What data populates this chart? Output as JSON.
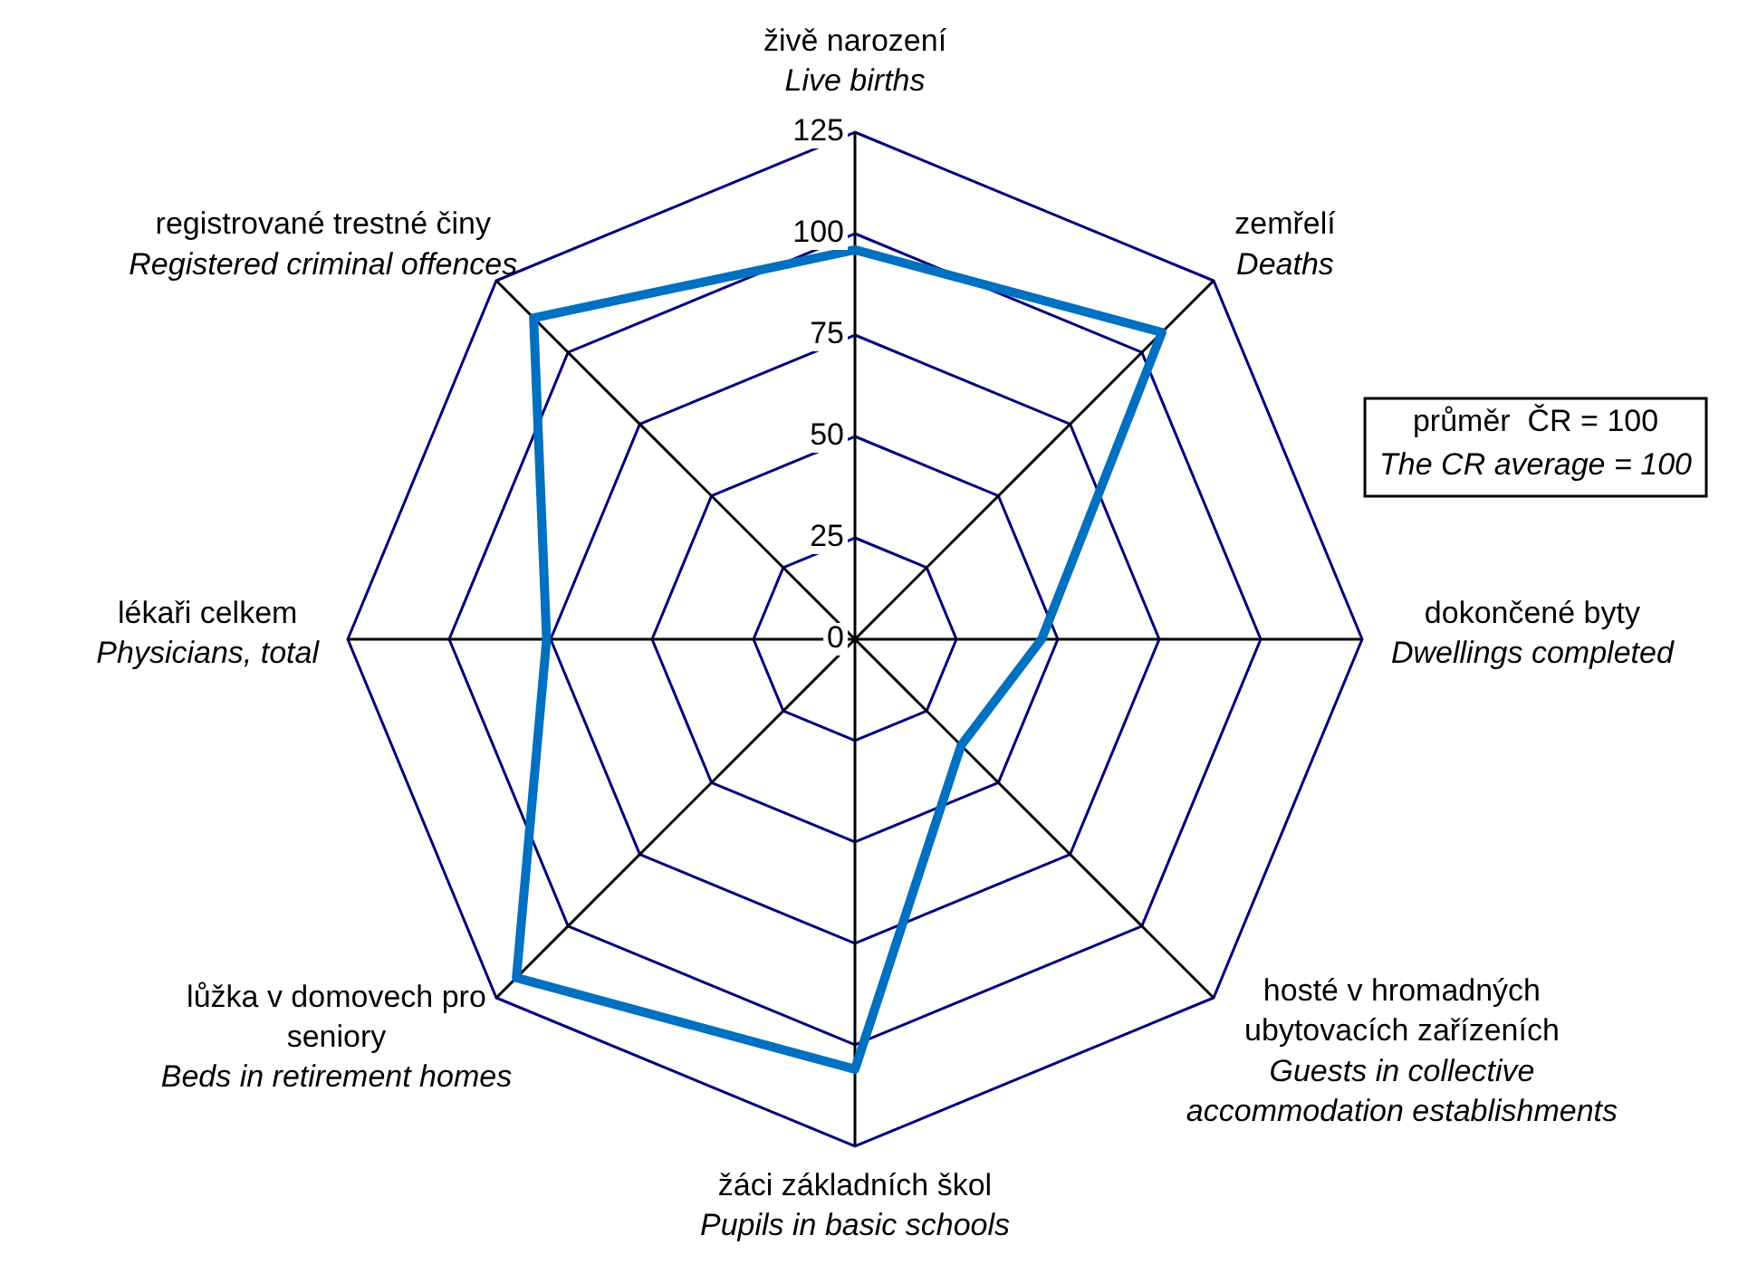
{
  "chart_data": {
    "type": "radar",
    "categories": [
      "živě narození\nLive births",
      "zemřelí\nDeaths",
      "dokončené byty\nDwellings completed",
      "hosté v hromadných ubytovacích zařízeních\nGuests in collective accommodation establishments",
      "žáci základních škol\nPupils in basic schools",
      "lůžka v domovech pro seniory\nBeds in retirement homes",
      "lékaři celkem\nPhysicians, total",
      "registrované trestné činy\nRegistered criminal offences"
    ],
    "series": [
      {
        "color": "#0070c0",
        "values": [
          96,
          107,
          46,
          37,
          106,
          118,
          76,
          112
        ]
      }
    ],
    "ylim": [
      0,
      125
    ],
    "yticks": [
      0,
      25,
      50,
      75,
      100,
      125
    ],
    "grid": true,
    "legend": false,
    "marker": "none",
    "line_style": "solid",
    "annotations": [
      "průměr  ČR = 100\nThe CR average = 100"
    ]
  }
}
